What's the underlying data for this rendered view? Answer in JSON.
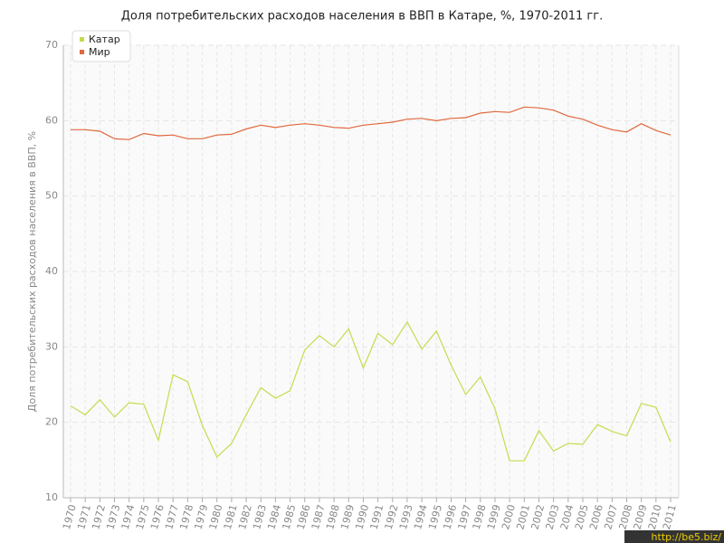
{
  "chart_data": {
    "type": "line",
    "title": "Доля потребительских расходов населения в ВВП в Катаре, %, 1970-2011 гг.",
    "y_label": "Доля потребительских расходов населения в ВВП, %",
    "watermark": "http://be5.biz/",
    "categories": [
      "1970",
      "1971",
      "1972",
      "1973",
      "1974",
      "1975",
      "1976",
      "1977",
      "1978",
      "1979",
      "1980",
      "1981",
      "1982",
      "1983",
      "1984",
      "1985",
      "1986",
      "1987",
      "1988",
      "1989",
      "1990",
      "1991",
      "1992",
      "1993",
      "1994",
      "1995",
      "1996",
      "1997",
      "1998",
      "1999",
      "2000",
      "2001",
      "2002",
      "2003",
      "2004",
      "2005",
      "2006",
      "2007",
      "2008",
      "2009",
      "2010",
      "2011"
    ],
    "series": [
      {
        "name": "Катар",
        "color": "#c3dc4f",
        "values": [
          22.2,
          21.0,
          23.0,
          20.7,
          22.6,
          22.4,
          17.6,
          26.3,
          25.4,
          19.6,
          15.4,
          17.2,
          21.0,
          24.6,
          23.2,
          24.2,
          29.6,
          31.5,
          30.0,
          32.4,
          27.2,
          31.8,
          30.3,
          33.3,
          29.7,
          32.1,
          27.6,
          23.7,
          26.0,
          21.8,
          14.9,
          14.9,
          18.9,
          16.2,
          17.2,
          17.1,
          19.7,
          18.8,
          18.2,
          22.5,
          22.0,
          17.4
        ]
      },
      {
        "name": "Мир",
        "color": "#e0683c",
        "values": [
          58.8,
          58.8,
          58.6,
          57.6,
          57.5,
          58.3,
          58.0,
          58.1,
          57.6,
          57.6,
          58.1,
          58.2,
          58.9,
          59.4,
          59.1,
          59.4,
          59.6,
          59.4,
          59.1,
          59.0,
          59.4,
          59.6,
          59.8,
          60.2,
          60.3,
          60.0,
          60.3,
          60.4,
          61.0,
          61.2,
          61.1,
          61.8,
          61.7,
          61.4,
          60.6,
          60.2,
          59.4,
          58.8,
          58.5,
          59.6,
          58.7,
          58.1
        ]
      }
    ],
    "ylim": [
      10,
      70
    ],
    "yticks": [
      10,
      20,
      30,
      40,
      50,
      60,
      70
    ],
    "grid": true,
    "legend": "top-left"
  }
}
